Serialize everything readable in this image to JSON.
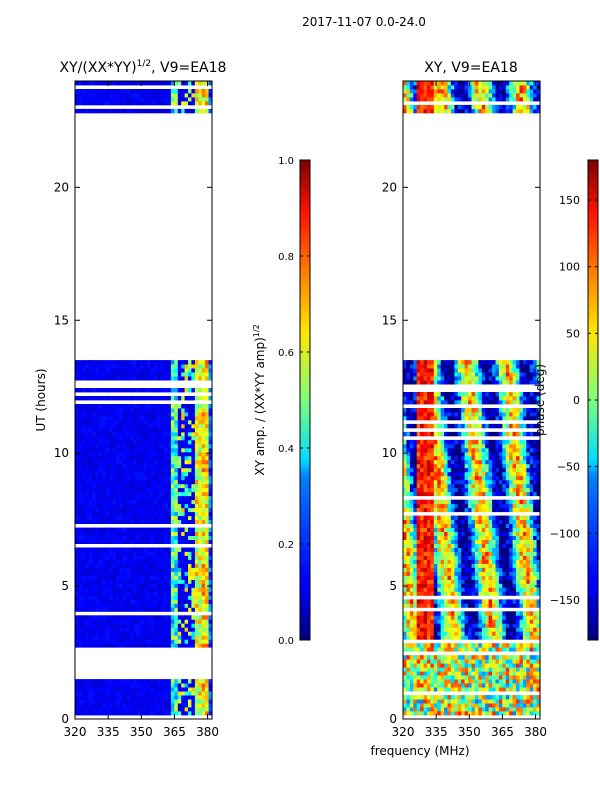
{
  "suptitle": "2017-11-07 0.0-24.0",
  "chart_data": [
    {
      "type": "heatmap",
      "title": "XY/(XX*YY)",
      "title_sup": "1/2",
      "title_rest": ", V9=EA18",
      "xlabel": "",
      "ylabel": "UT (hours)",
      "xlim": [
        320,
        382
      ],
      "ylim": [
        0,
        24
      ],
      "xticks": [
        320,
        335,
        350,
        365,
        380
      ],
      "yticks": [
        0,
        5,
        10,
        15,
        20
      ],
      "data_gaps_hours": [
        [
          1.35,
          2.55
        ],
        [
          13.45,
          22.75
        ]
      ],
      "colorbar": {
        "label": "XY amp. / (XX*YY amp)",
        "label_sup": "1/2",
        "range": [
          0.0,
          1.0
        ],
        "ticks": [
          "0.0",
          "0.2",
          "0.4",
          "0.6",
          "0.8",
          "1.0"
        ],
        "tick_values": [
          0.0,
          0.2,
          0.4,
          0.6,
          0.8,
          1.0
        ],
        "colormap": "jet"
      }
    },
    {
      "type": "heatmap",
      "title": "XY, V9=EA18",
      "xlabel": "frequency (MHz)",
      "ylabel": "",
      "xlim": [
        320,
        382
      ],
      "ylim": [
        0,
        24
      ],
      "xticks": [
        320,
        335,
        350,
        365,
        380
      ],
      "yticks": [
        0,
        5,
        10,
        15,
        20
      ],
      "data_gaps_hours": [
        [
          13.45,
          22.75
        ]
      ],
      "colorbar": {
        "label": "phase (deg)",
        "range": [
          -180,
          180
        ],
        "ticks": [
          "−150",
          "−100",
          "−50",
          "0",
          "50",
          "100",
          "150"
        ],
        "tick_values": [
          -150,
          -100,
          -50,
          0,
          50,
          100,
          150
        ],
        "colormap": "jet"
      }
    }
  ]
}
